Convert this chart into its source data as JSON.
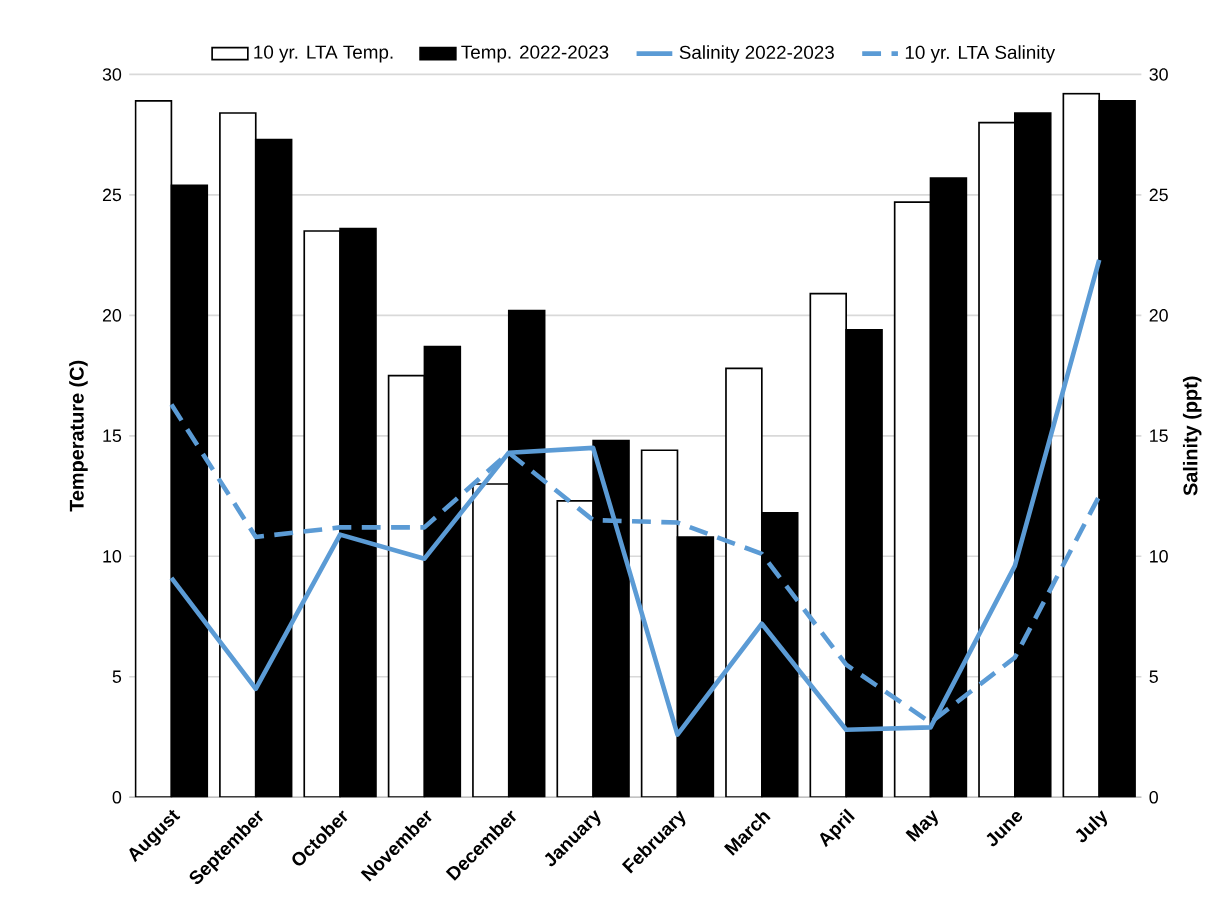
{
  "chart_data": {
    "type": "bar",
    "xlabel": null,
    "ylabel": "Temperature (C)",
    "y2label": "Salinity (ppt)",
    "categories": [
      "August",
      "September",
      "October",
      "November",
      "December",
      "January",
      "February",
      "March",
      "April",
      "May",
      "June",
      "July"
    ],
    "series": [
      {
        "name": "10 yr. LTA Temp.",
        "color": "#ffffff",
        "values": [
          28.9,
          28.4,
          23.5,
          17.5,
          13.0,
          12.3,
          14.4,
          17.8,
          20.9,
          24.7,
          28.0,
          29.2
        ]
      },
      {
        "name": "Temp. 2022-2023",
        "color": "#000000",
        "values": [
          25.4,
          27.3,
          23.6,
          18.7,
          20.2,
          14.8,
          10.8,
          11.8,
          19.4,
          25.7,
          28.4,
          28.9
        ]
      },
      {
        "name": "Salinity 2022-2023",
        "type": "line",
        "axis": "y2",
        "line_style": "solid",
        "color": "#5b9bd5",
        "values": [
          9.1,
          4.5,
          10.9,
          9.9,
          14.3,
          14.5,
          2.6,
          7.2,
          2.8,
          2.9,
          9.6,
          22.3
        ]
      },
      {
        "name": "10 yr. LTA Salinity",
        "type": "line",
        "axis": "y2",
        "line_style": "dashed",
        "color": "#5b9bd5",
        "values": [
          16.3,
          10.8,
          11.2,
          11.2,
          14.3,
          11.5,
          11.4,
          10.1,
          5.5,
          3.1,
          5.8,
          12.5
        ]
      }
    ],
    "ylim": [
      0,
      30
    ],
    "yticks": [
      0,
      5,
      10,
      15,
      20,
      25,
      30
    ],
    "y2lim": [
      0,
      30
    ],
    "y2ticks": [
      0,
      5,
      10,
      15,
      20,
      25,
      30
    ],
    "grid": "y",
    "legend": "top",
    "marker": "none"
  }
}
